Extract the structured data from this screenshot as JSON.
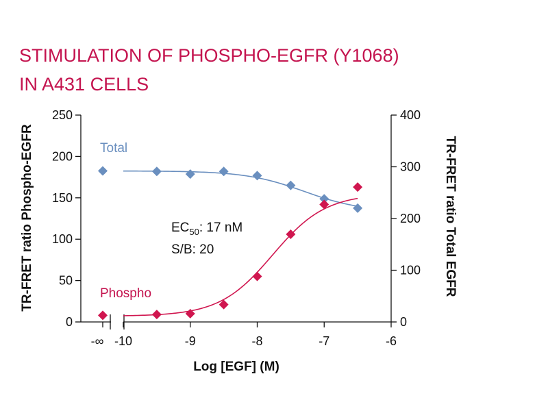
{
  "chart_data": {
    "type": "scatter",
    "title_lines": [
      "STIMULATION OF PHOSPHO-EGFR (Y1068)",
      "IN A431 CELLS"
    ],
    "xlabel": "Log [EGF] (M)",
    "ylabel_left": "TR-FRET ratio Phospho-EGFR",
    "ylabel_right": "TR-FRET ratio Total EGFR",
    "xlim": [
      -10,
      -6
    ],
    "ylim_left": [
      0,
      250
    ],
    "ylim_right": [
      0,
      400
    ],
    "x_tick_labels": [
      "-∞",
      "-10",
      "-9",
      "-8",
      "-7",
      "-6"
    ],
    "y_left_ticks": [
      0,
      50,
      100,
      150,
      200,
      250
    ],
    "y_right_ticks": [
      0,
      100,
      200,
      300,
      400
    ],
    "grid": false,
    "annotations": {
      "ec50_prefix": "EC",
      "ec50_sub": "50",
      "ec50_value": ": 17 nM",
      "sb": "S/B: 20"
    },
    "series": [
      {
        "name": "Total",
        "axis": "right",
        "color": "#6a8fbf",
        "marker": "diamond",
        "baseline": {
          "x_label": "-∞",
          "y": 292
        },
        "x": [
          -9.5,
          -9,
          -8.5,
          -8,
          -7.5,
          -7,
          -6.5
        ],
        "y": [
          291,
          286,
          291,
          283,
          264,
          238,
          220
        ],
        "fit": {
          "bottom": 213,
          "top": 292,
          "logEC50": -7.3,
          "hill": 1,
          "from": -10,
          "to": -6.5
        }
      },
      {
        "name": "Phospho",
        "axis": "left",
        "color": "#d0164f",
        "marker": "diamond",
        "baseline": {
          "x_label": "-∞",
          "y": 8
        },
        "x": [
          -9.5,
          -9,
          -8.5,
          -8,
          -7.5,
          -7,
          -6.5
        ],
        "y": [
          9,
          10,
          21,
          55,
          106,
          142,
          163
        ],
        "fit": {
          "bottom": 7,
          "top": 155,
          "logEC50": -7.77,
          "hill": 1.1,
          "from": -10,
          "to": -6.5
        }
      }
    ]
  }
}
